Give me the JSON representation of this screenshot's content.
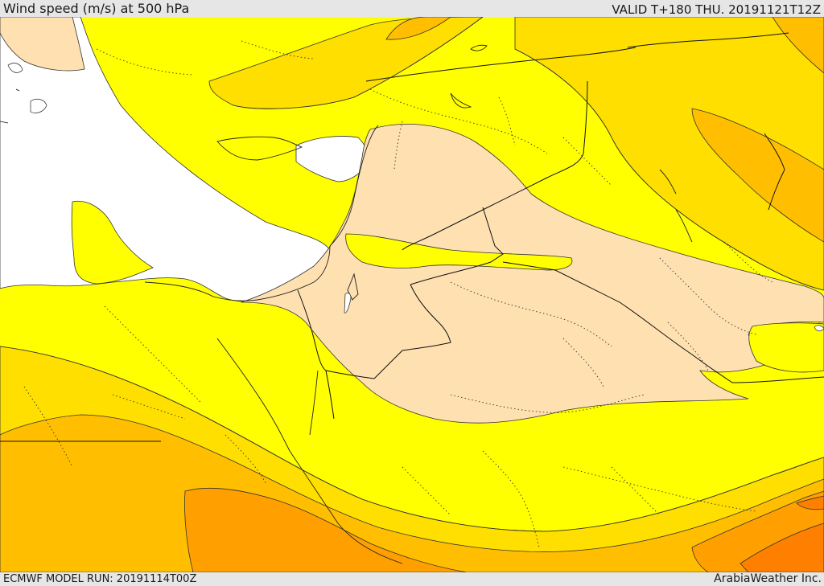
{
  "header": {
    "title": "Wind speed (m/s) at 500 hPa",
    "valid_time": "VALID T+180 THU. 20191121T12Z"
  },
  "footer": {
    "model_run": "ECMWF MODEL RUN: 20191114T00Z",
    "credit": "ArabiaWeather Inc."
  },
  "map": {
    "palette": {
      "calm": "#ffe0b0",
      "light": "#ffff00",
      "moderate": "#ffdf00",
      "strong": "#ffbf00",
      "very_strong": "#ff9f00",
      "extreme": "#ff7f00",
      "sea_missing": "#ffffff",
      "contour": "#333333",
      "border": "#111111"
    },
    "contour_icon": "solid-contour-lines",
    "border_icon": "political-border-lines",
    "admin_icon": "dotted-admin-boundaries"
  }
}
